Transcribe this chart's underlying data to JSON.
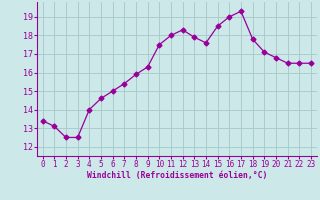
{
  "x": [
    0,
    1,
    2,
    3,
    4,
    5,
    6,
    7,
    8,
    9,
    10,
    11,
    12,
    13,
    14,
    15,
    16,
    17,
    18,
    19,
    20,
    21,
    22,
    23
  ],
  "y": [
    13.4,
    13.1,
    12.5,
    12.5,
    14.0,
    14.6,
    15.0,
    15.4,
    15.9,
    16.3,
    17.5,
    18.0,
    18.3,
    17.9,
    17.6,
    18.5,
    19.0,
    19.3,
    17.8,
    17.1,
    16.8,
    16.5,
    16.5,
    16.5
  ],
  "line_color": "#990099",
  "marker": "D",
  "marker_size": 2.5,
  "bg_color": "#cce8e8",
  "grid_color": "#aacccc",
  "xlabel": "Windchill (Refroidissement éolien,°C)",
  "xlabel_color": "#990099",
  "tick_color": "#990099",
  "ylim": [
    11.5,
    19.8
  ],
  "xlim": [
    -0.5,
    23.5
  ],
  "yticks": [
    12,
    13,
    14,
    15,
    16,
    17,
    18,
    19
  ],
  "xticks": [
    0,
    1,
    2,
    3,
    4,
    5,
    6,
    7,
    8,
    9,
    10,
    11,
    12,
    13,
    14,
    15,
    16,
    17,
    18,
    19,
    20,
    21,
    22,
    23
  ]
}
